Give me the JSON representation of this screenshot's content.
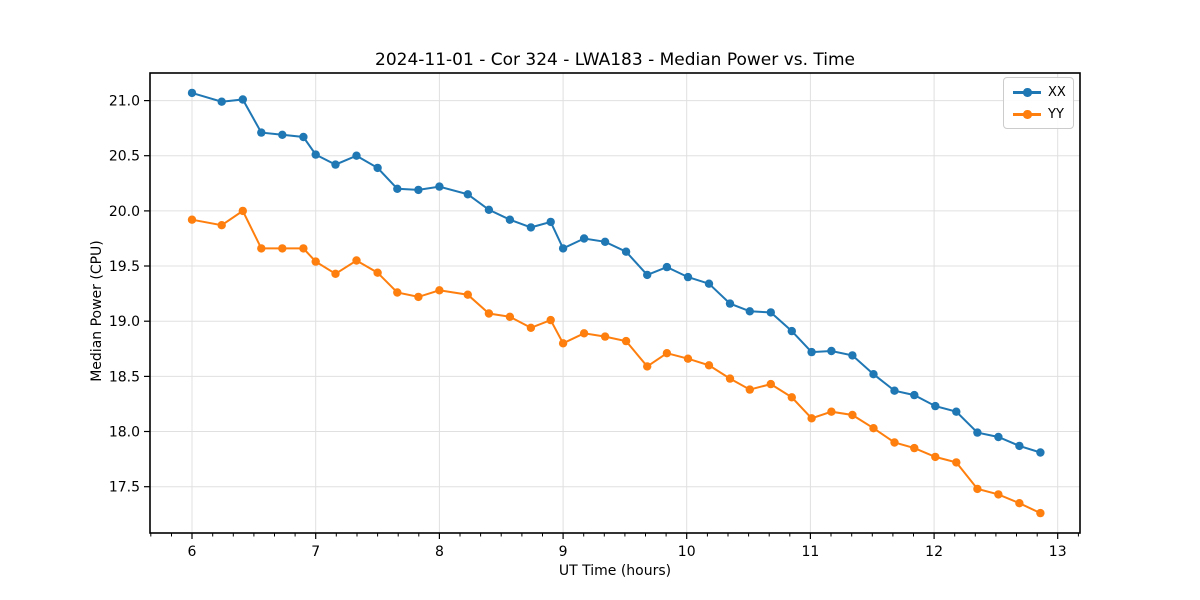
{
  "chart_data": {
    "type": "line",
    "title": "2024-11-01 - Cor 324 - LWA183 - Median Power vs. Time",
    "xlabel": "UT Time (hours)",
    "ylabel": "Median Power (CPU)",
    "xlim": [
      5.66,
      13.18
    ],
    "ylim": [
      17.08,
      21.25
    ],
    "x_ticks": [
      6,
      7,
      8,
      9,
      10,
      11,
      12,
      13
    ],
    "y_ticks": [
      17.5,
      18.0,
      18.5,
      19.0,
      19.5,
      20.0,
      20.5,
      21.0
    ],
    "x_minor_tick_step": 0.16667,
    "grid": true,
    "grid_color": "#e0e0e0",
    "legend_position": "upper right",
    "x": [
      6.0,
      6.24,
      6.41,
      6.56,
      6.73,
      6.9,
      7.0,
      7.16,
      7.33,
      7.5,
      7.66,
      7.83,
      8.0,
      8.23,
      8.4,
      8.57,
      8.74,
      8.9,
      9.0,
      9.17,
      9.34,
      9.51,
      9.68,
      9.84,
      10.01,
      10.18,
      10.35,
      10.51,
      10.68,
      10.85,
      11.01,
      11.17,
      11.34,
      11.51,
      11.68,
      11.84,
      12.01,
      12.18,
      12.35,
      12.52,
      12.69,
      12.86
    ],
    "series": [
      {
        "name": "XX",
        "color": "#1f77b4",
        "marker": "circle",
        "values": [
          21.07,
          20.99,
          21.01,
          20.71,
          20.69,
          20.67,
          20.51,
          20.42,
          20.5,
          20.39,
          20.2,
          20.19,
          20.22,
          20.15,
          20.01,
          19.92,
          19.85,
          19.9,
          19.66,
          19.75,
          19.72,
          19.63,
          19.42,
          19.49,
          19.4,
          19.34,
          19.16,
          19.09,
          19.08,
          18.91,
          18.72,
          18.73,
          18.69,
          18.52,
          18.37,
          18.33,
          18.23,
          18.18,
          17.99,
          17.95,
          17.87,
          17.81
        ]
      },
      {
        "name": "YY",
        "color": "#ff7f0e",
        "marker": "circle",
        "values": [
          19.92,
          19.87,
          20.0,
          19.66,
          19.66,
          19.66,
          19.54,
          19.43,
          19.55,
          19.44,
          19.26,
          19.22,
          19.28,
          19.24,
          19.07,
          19.04,
          18.94,
          19.01,
          18.8,
          18.89,
          18.86,
          18.82,
          18.59,
          18.71,
          18.66,
          18.6,
          18.48,
          18.38,
          18.43,
          18.31,
          18.12,
          18.18,
          18.15,
          18.03,
          17.9,
          17.85,
          17.77,
          17.72,
          17.48,
          17.43,
          17.35,
          17.26
        ]
      }
    ]
  }
}
